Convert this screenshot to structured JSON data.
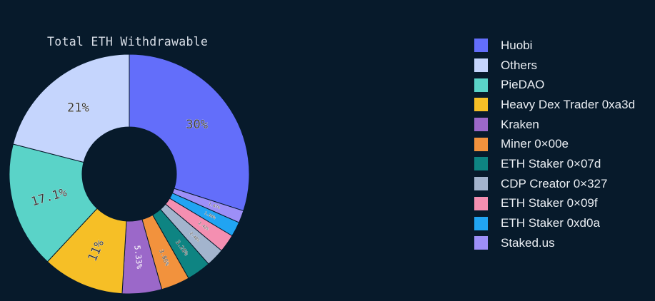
{
  "chart_data": {
    "type": "pie",
    "title": "Total ETH Withdrawable",
    "donut": true,
    "legend_position": "right",
    "categories": [
      "Huobi",
      "Others",
      "PieDAO",
      "Heavy Dex Trader 0xa3d",
      "Kraken",
      "Miner 0×00e",
      "ETH Staker 0×07d",
      "CDP Creator 0×327",
      "ETH Staker 0×09f",
      "ETH Staker 0xd0a",
      "Staked.us"
    ],
    "values": [
      30,
      21,
      17.1,
      11,
      5.33,
      3.86,
      3.26,
      2.48,
      2.42,
      1.99,
      1.67
    ],
    "slice_labels": [
      "30%",
      "21%",
      "17.1%",
      "11%",
      "5.33%",
      "3.86%",
      "3.26%",
      "2.48%",
      "2.42%",
      "1.99%",
      "1.67%"
    ],
    "colors": [
      "#636efa",
      "#c5d5fd",
      "#5ad3c8",
      "#f6bf26",
      "#9b68c9",
      "#f2923d",
      "#0e8482",
      "#a3b4cd",
      "#f48fb1",
      "#21a4f2",
      "#9d8ff7"
    ],
    "slice_order": [
      0,
      10,
      9,
      8,
      7,
      6,
      5,
      4,
      3,
      2,
      1
    ]
  }
}
